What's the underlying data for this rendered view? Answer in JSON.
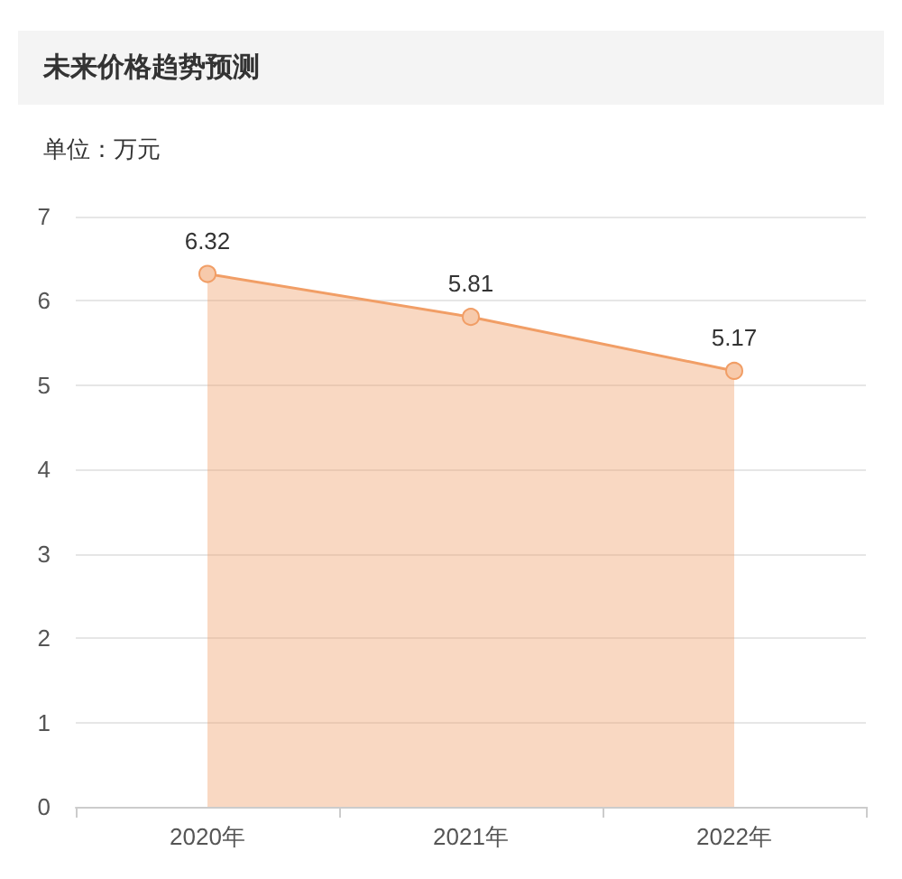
{
  "chart_data": {
    "type": "area",
    "title": "未来价格趋势预测",
    "ylabel": "单位：万元",
    "categories": [
      "2020年",
      "2021年",
      "2022年"
    ],
    "values": [
      6.32,
      5.81,
      5.17
    ],
    "color": "#f19e66",
    "ylim": [
      0,
      7
    ],
    "yticks": [
      0,
      1,
      2,
      3,
      4,
      5,
      6,
      7
    ],
    "grid": "y",
    "marker": "circle",
    "data_labels": true
  }
}
